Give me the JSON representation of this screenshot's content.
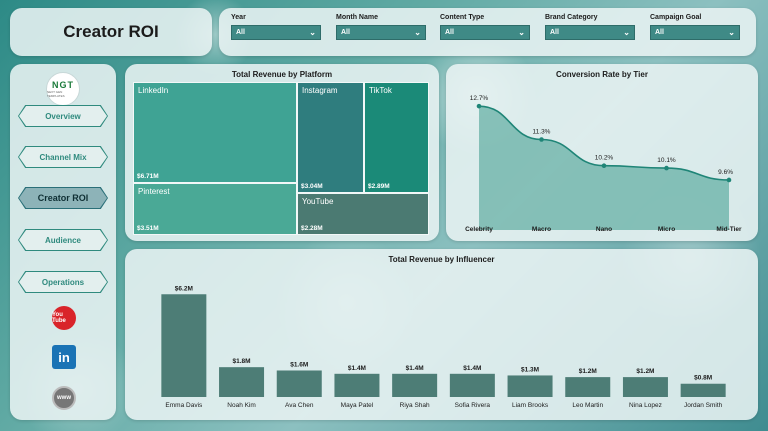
{
  "header": {
    "title": "Creator ROI"
  },
  "filters": [
    {
      "label": "Year",
      "value": "All"
    },
    {
      "label": "Month Name",
      "value": "All"
    },
    {
      "label": "Content Type",
      "value": "All"
    },
    {
      "label": "Brand Category",
      "value": "All"
    },
    {
      "label": "Campaign Goal",
      "value": "All"
    }
  ],
  "sidebar": {
    "logo_text": "NGT",
    "logo_subtext": "NEXT GEN TEMPLATES",
    "items": [
      {
        "label": "Overview",
        "active": false
      },
      {
        "label": "Channel Mix",
        "active": false
      },
      {
        "label": "Creator ROI",
        "active": true
      },
      {
        "label": "Audience",
        "active": false
      },
      {
        "label": "Operations",
        "active": false
      }
    ],
    "social_icons": [
      "youtube-icon",
      "linkedin-icon",
      "website-icon"
    ],
    "social_glyphs": {
      "youtube": "You Tube",
      "linkedin": "in",
      "website": "www"
    }
  },
  "colors": {
    "accent": "#3f8a86",
    "linkedin_tile": "#3fa394",
    "instagram_tile": "#2f7d7e",
    "tiktok_tile": "#1b8a78",
    "pinterest_tile": "#4aa996",
    "youtube_tile": "#4b7a72",
    "bar": "#4d7d76",
    "area": "#3d9b8d"
  },
  "chart_data": [
    {
      "type": "treemap",
      "title": "Total Revenue by Platform",
      "items": [
        {
          "label": "LinkedIn",
          "value": 6.71,
          "display": "$6.71M"
        },
        {
          "label": "Instagram",
          "value": 3.04,
          "display": "$3.04M"
        },
        {
          "label": "TikTok",
          "value": 2.89,
          "display": "$2.89M"
        },
        {
          "label": "Pinterest",
          "value": 3.51,
          "display": "$3.51M"
        },
        {
          "label": "YouTube",
          "value": 2.28,
          "display": "$2.28M"
        }
      ]
    },
    {
      "type": "area",
      "title": "Conversion Rate by Tier",
      "categories": [
        "Celebrity",
        "Macro",
        "Nano",
        "Micro",
        "Mid-Tier"
      ],
      "values": [
        12.7,
        11.3,
        10.2,
        10.1,
        9.6
      ],
      "data_labels": [
        "12.7%",
        "11.3%",
        "10.2%",
        "10.1%",
        "9.6%"
      ],
      "ylim": [
        7.5,
        13.0
      ]
    },
    {
      "type": "bar",
      "title": "Total Revenue by Influencer",
      "categories": [
        "Emma Davis",
        "Noah Kim",
        "Ava Chen",
        "Maya Patel",
        "Riya Shah",
        "Sofia Rivera",
        "Liam Brooks",
        "Leo Martin",
        "Nina Lopez",
        "Jordan Smith"
      ],
      "values": [
        6.2,
        1.8,
        1.6,
        1.4,
        1.4,
        1.4,
        1.3,
        1.2,
        1.2,
        0.8
      ],
      "data_labels": [
        "$6.2M",
        "$1.8M",
        "$1.6M",
        "$1.4M",
        "$1.4M",
        "$1.4M",
        "$1.3M",
        "$1.2M",
        "$1.2M",
        "$0.8M"
      ],
      "ylim": [
        0,
        7
      ]
    }
  ]
}
